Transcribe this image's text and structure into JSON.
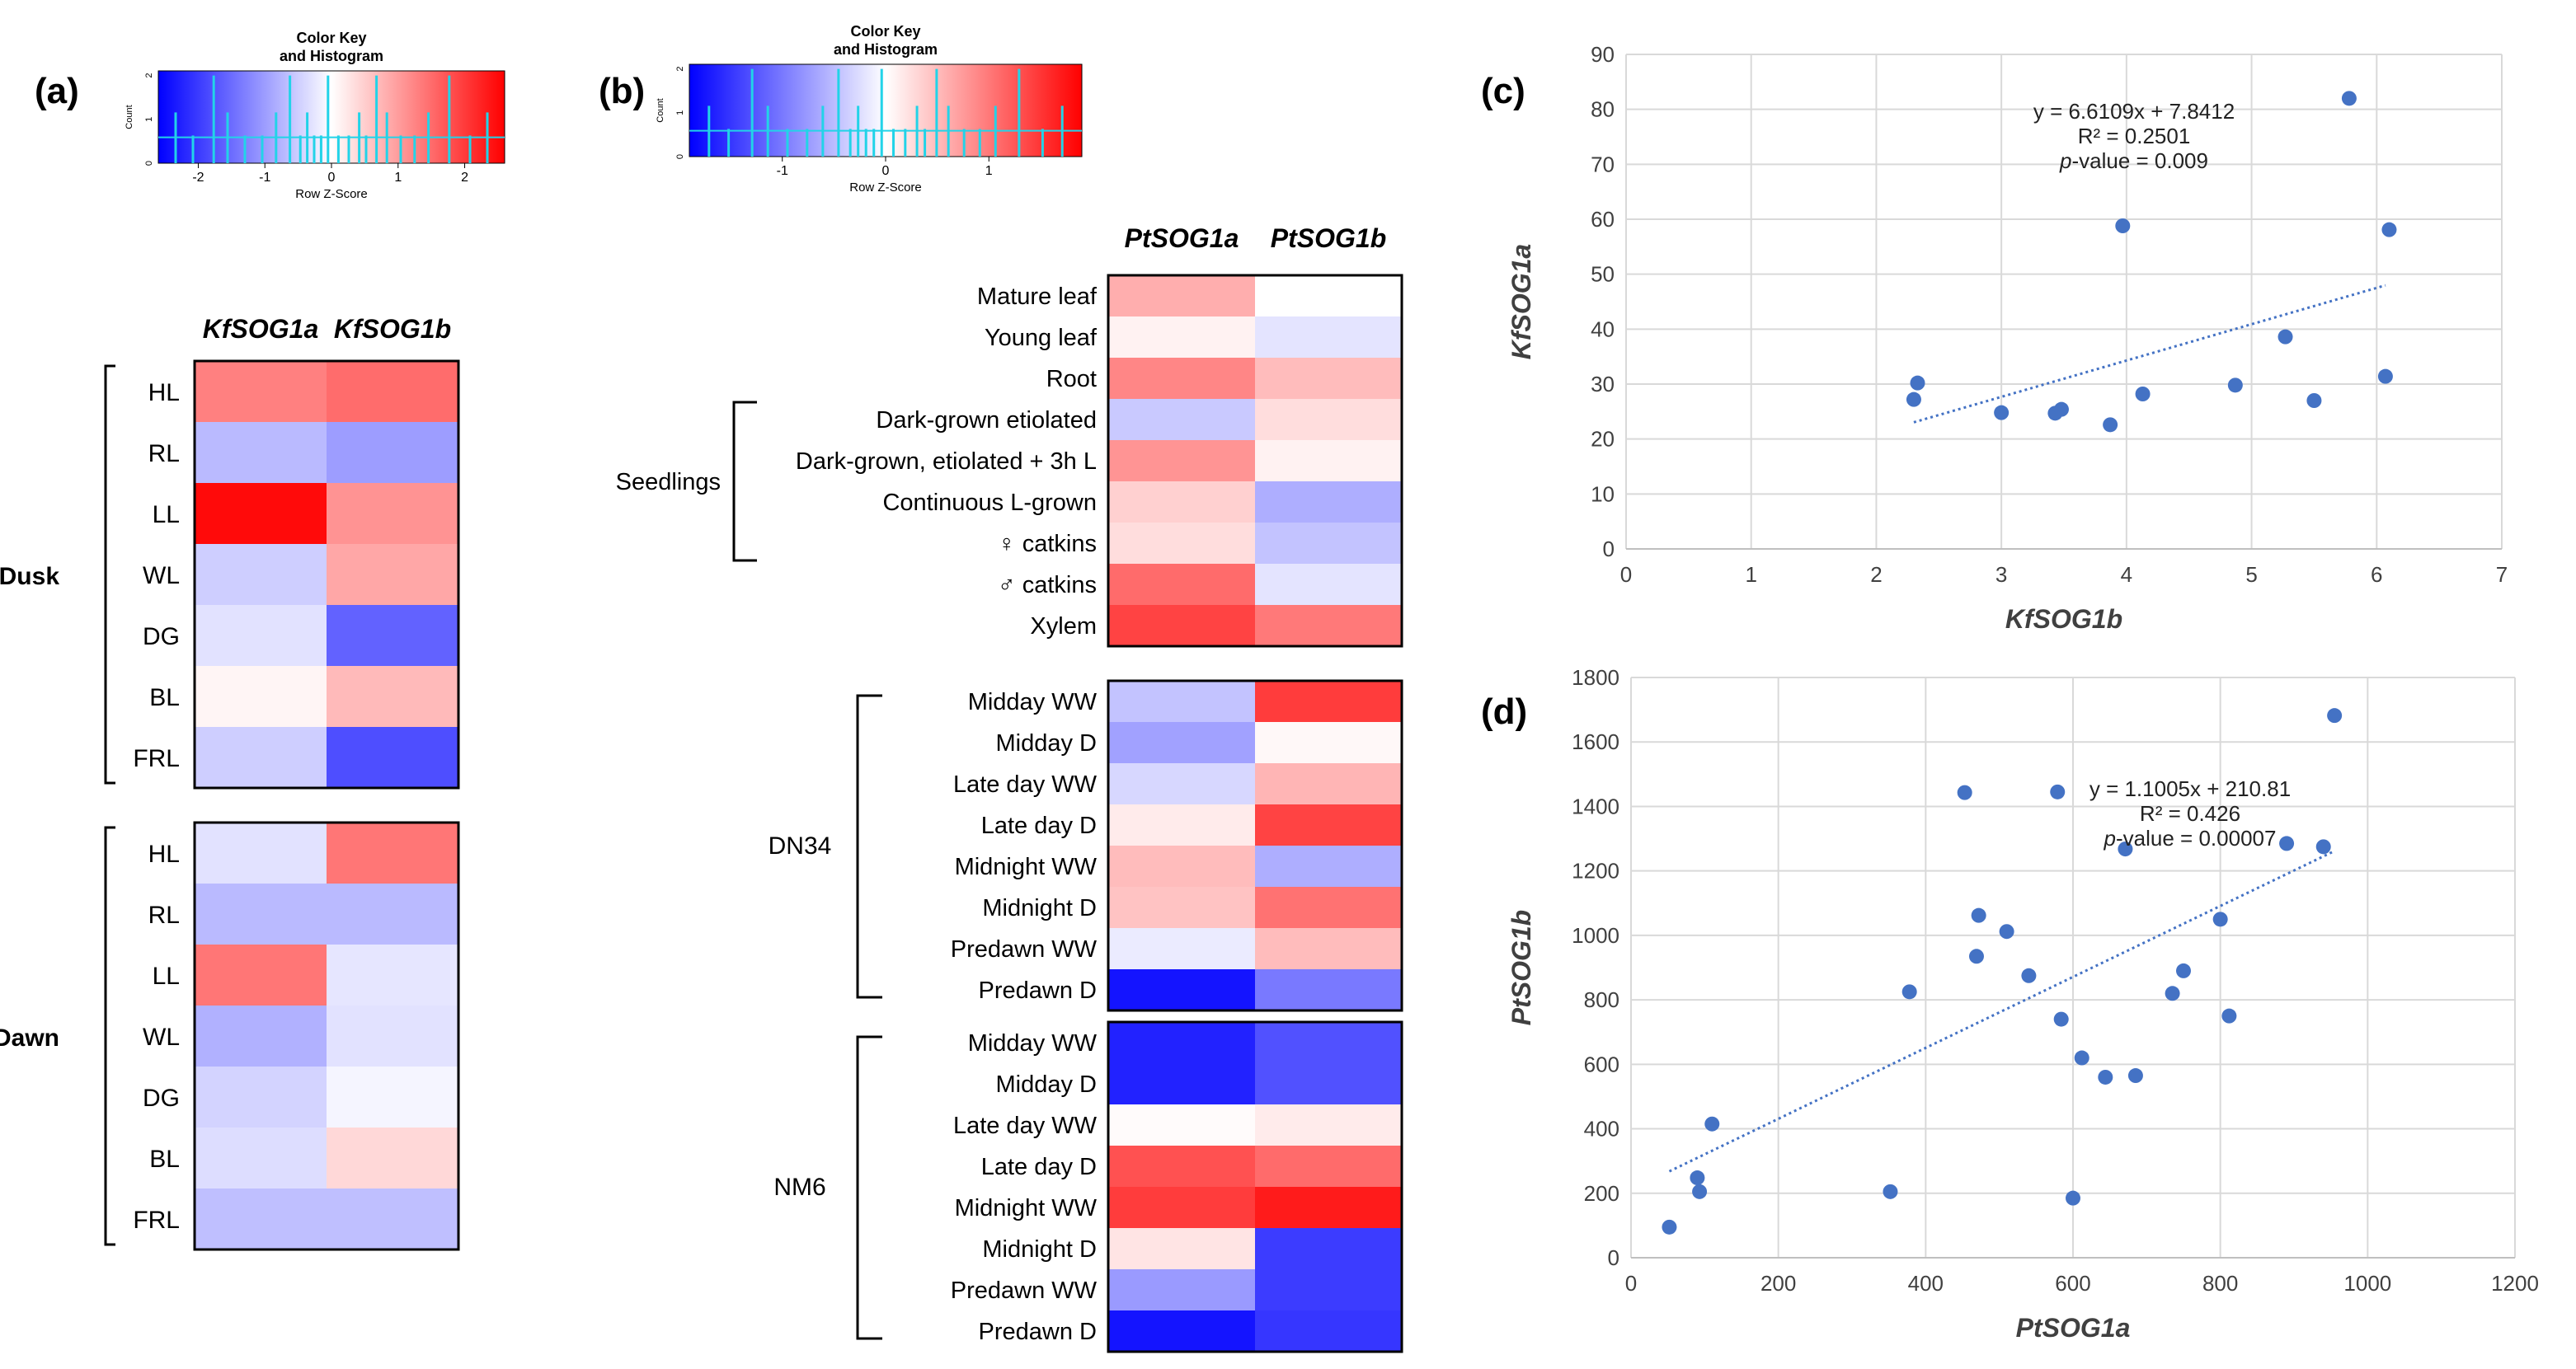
{
  "panels": {
    "a": {
      "label": "(a)",
      "color_key": {
        "title": [
          "Color Key",
          "and Histogram"
        ],
        "ylabel": "Count",
        "yticks": [
          "0",
          "1",
          "2"
        ],
        "xlabel": "Row Z-Score",
        "xticks": [
          "-2",
          "-1",
          "0",
          "1",
          "2"
        ],
        "range": [
          -2.6,
          2.6
        ]
      },
      "columns": [
        "KfSOG1a",
        "KfSOG1b"
      ],
      "groups": [
        {
          "name": "Dusk",
          "rows": [
            {
              "label": "HL",
              "values": [
                1.3,
                1.5
              ]
            },
            {
              "label": "RL",
              "values": [
                -0.7,
                -1.0
              ]
            },
            {
              "label": "LL",
              "values": [
                2.5,
                1.1
              ]
            },
            {
              "label": "WL",
              "values": [
                -0.5,
                0.9
              ]
            },
            {
              "label": "DG",
              "values": [
                -0.3,
                -1.6
              ]
            },
            {
              "label": "BL",
              "values": [
                0.1,
                0.7
              ]
            },
            {
              "label": "FRL",
              "values": [
                -0.5,
                -1.8
              ]
            }
          ]
        },
        {
          "name": "Dawn",
          "rows": [
            {
              "label": "HL",
              "values": [
                -0.3,
                1.4
              ]
            },
            {
              "label": "RL",
              "values": [
                -0.7,
                -0.7
              ]
            },
            {
              "label": "LL",
              "values": [
                1.4,
                -0.25
              ]
            },
            {
              "label": "WL",
              "values": [
                -0.8,
                -0.3
              ]
            },
            {
              "label": "DG",
              "values": [
                -0.45,
                -0.1
              ]
            },
            {
              "label": "BL",
              "values": [
                -0.35,
                0.4
              ]
            },
            {
              "label": "FRL",
              "values": [
                -0.65,
                -0.65
              ]
            }
          ]
        }
      ]
    },
    "b": {
      "label": "(b)",
      "color_key": {
        "title": [
          "Color Key",
          "and Histogram"
        ],
        "ylabel": "Count",
        "yticks": [
          "0",
          "1",
          "2"
        ],
        "xlabel": "Row Z-Score",
        "xticks": [
          "-1",
          "0",
          "1"
        ],
        "range": [
          -1.9,
          1.9
        ]
      },
      "columns": [
        "PtSOG1a",
        "PtSOG1b"
      ],
      "groups": [
        {
          "name": "",
          "bracket": "Seedlings",
          "rows": [
            {
              "label": "Mature leaf",
              "values": [
                0.6,
                0.0
              ]
            },
            {
              "label": "Young leaf",
              "values": [
                0.1,
                -0.2
              ]
            },
            {
              "label": "Root",
              "values": [
                0.9,
                0.5
              ]
            },
            {
              "label": "Dark-grown etiolated",
              "values": [
                -0.4,
                0.25
              ]
            },
            {
              "label": "Dark-grown, etiolated + 3h L",
              "values": [
                0.8,
                0.1
              ]
            },
            {
              "label": "Continuous L-grown",
              "values": [
                0.35,
                -0.6
              ]
            },
            {
              "label": "♀ catkins",
              "values": [
                0.25,
                -0.45
              ]
            },
            {
              "label": "♂ catkins",
              "values": [
                1.1,
                -0.2
              ]
            },
            {
              "label": "Xylem",
              "values": [
                1.4,
                1.0
              ]
            }
          ]
        },
        {
          "name": "DN34",
          "rows": [
            {
              "label": "Midday WW",
              "values": [
                -0.45,
                1.45
              ]
            },
            {
              "label": "Midday D",
              "values": [
                -0.7,
                0.05
              ]
            },
            {
              "label": "Late day WW",
              "values": [
                -0.3,
                0.55
              ]
            },
            {
              "label": "Late day D",
              "values": [
                0.15,
                1.4
              ]
            },
            {
              "label": "Midnight WW",
              "values": [
                0.5,
                -0.6
              ]
            },
            {
              "label": "Midnight D",
              "values": [
                0.45,
                1.05
              ]
            },
            {
              "label": "Predawn WW",
              "values": [
                -0.15,
                0.5
              ]
            },
            {
              "label": "Predawn D",
              "values": [
                -1.75,
                -1.0
              ]
            }
          ]
        },
        {
          "name": "NM6",
          "rows": [
            {
              "label": "Midday WW",
              "values": [
                -1.65,
                -1.3
              ]
            },
            {
              "label": "Midday D",
              "values": [
                -1.65,
                -1.3
              ]
            },
            {
              "label": "Late day WW",
              "values": [
                0.03,
                0.15
              ]
            },
            {
              "label": "Late day D",
              "values": [
                1.3,
                1.1
              ]
            },
            {
              "label": "Midnight WW",
              "values": [
                1.45,
                1.7
              ]
            },
            {
              "label": "Midnight D",
              "values": [
                0.2,
                -1.45
              ]
            },
            {
              "label": "Predawn WW",
              "values": [
                -0.75,
                -1.45
              ]
            },
            {
              "label": "Predawn D",
              "values": [
                -1.75,
                -1.5
              ]
            }
          ]
        }
      ]
    },
    "c": {
      "label": "(c)"
    },
    "d": {
      "label": "(d)"
    }
  },
  "chart_data": [
    {
      "type": "scatter",
      "panel": "(c)",
      "xlabel": "KfSOG1b",
      "ylabel": "KfSOG1a",
      "xlim": [
        0,
        7
      ],
      "ylim": [
        0,
        90
      ],
      "xticks": [
        0,
        1,
        2,
        3,
        4,
        5,
        6,
        7
      ],
      "yticks": [
        0,
        10,
        20,
        30,
        40,
        50,
        60,
        70,
        80,
        90
      ],
      "points": [
        [
          2.3,
          27.2
        ],
        [
          2.33,
          30.2
        ],
        [
          3.0,
          24.8
        ],
        [
          3.43,
          24.7
        ],
        [
          3.48,
          25.4
        ],
        [
          3.87,
          22.6
        ],
        [
          3.97,
          58.8
        ],
        [
          4.13,
          28.2
        ],
        [
          4.87,
          29.8
        ],
        [
          5.27,
          38.6
        ],
        [
          5.5,
          27.0
        ],
        [
          5.78,
          82.0
        ],
        [
          6.07,
          31.4
        ],
        [
          6.1,
          58.1
        ]
      ],
      "trendline": {
        "slope": 6.6109,
        "intercept": 7.8412,
        "x_range": [
          2.3,
          6.07
        ]
      },
      "annotation": {
        "equation": "y = 6.6109x + 7.8412",
        "r2": "R² = 0.2501",
        "p_label": "p",
        "p_rest": "-value = 0.009"
      }
    },
    {
      "type": "scatter",
      "panel": "(d)",
      "xlabel": "PtSOG1a",
      "ylabel": "PtSOG1b",
      "xlim": [
        0,
        1200
      ],
      "ylim": [
        0,
        1800
      ],
      "xticks": [
        0,
        200,
        400,
        600,
        800,
        1000,
        1200
      ],
      "yticks": [
        0,
        200,
        400,
        600,
        800,
        1000,
        1200,
        1400,
        1600,
        1800
      ],
      "points": [
        [
          52,
          95
        ],
        [
          90,
          248
        ],
        [
          93,
          205
        ],
        [
          110,
          415
        ],
        [
          352,
          205
        ],
        [
          378,
          825
        ],
        [
          453,
          1443
        ],
        [
          469,
          935
        ],
        [
          472,
          1062
        ],
        [
          510,
          1012
        ],
        [
          540,
          875
        ],
        [
          579,
          1445
        ],
        [
          584,
          740
        ],
        [
          600,
          185
        ],
        [
          612,
          620
        ],
        [
          644,
          560
        ],
        [
          671,
          1268
        ],
        [
          685,
          565
        ],
        [
          735,
          820
        ],
        [
          750,
          890
        ],
        [
          800,
          1050
        ],
        [
          812,
          750
        ],
        [
          890,
          1285
        ],
        [
          940,
          1275
        ],
        [
          955,
          1682
        ]
      ],
      "trendline": {
        "slope": 1.1005,
        "intercept": 210.81,
        "x_range": [
          52,
          955
        ]
      },
      "annotation": {
        "equation": "y = 1.1005x + 210.81",
        "r2": "R² = 0.426",
        "p_label": "p",
        "p_rest": "-value = 0.00007"
      }
    }
  ]
}
